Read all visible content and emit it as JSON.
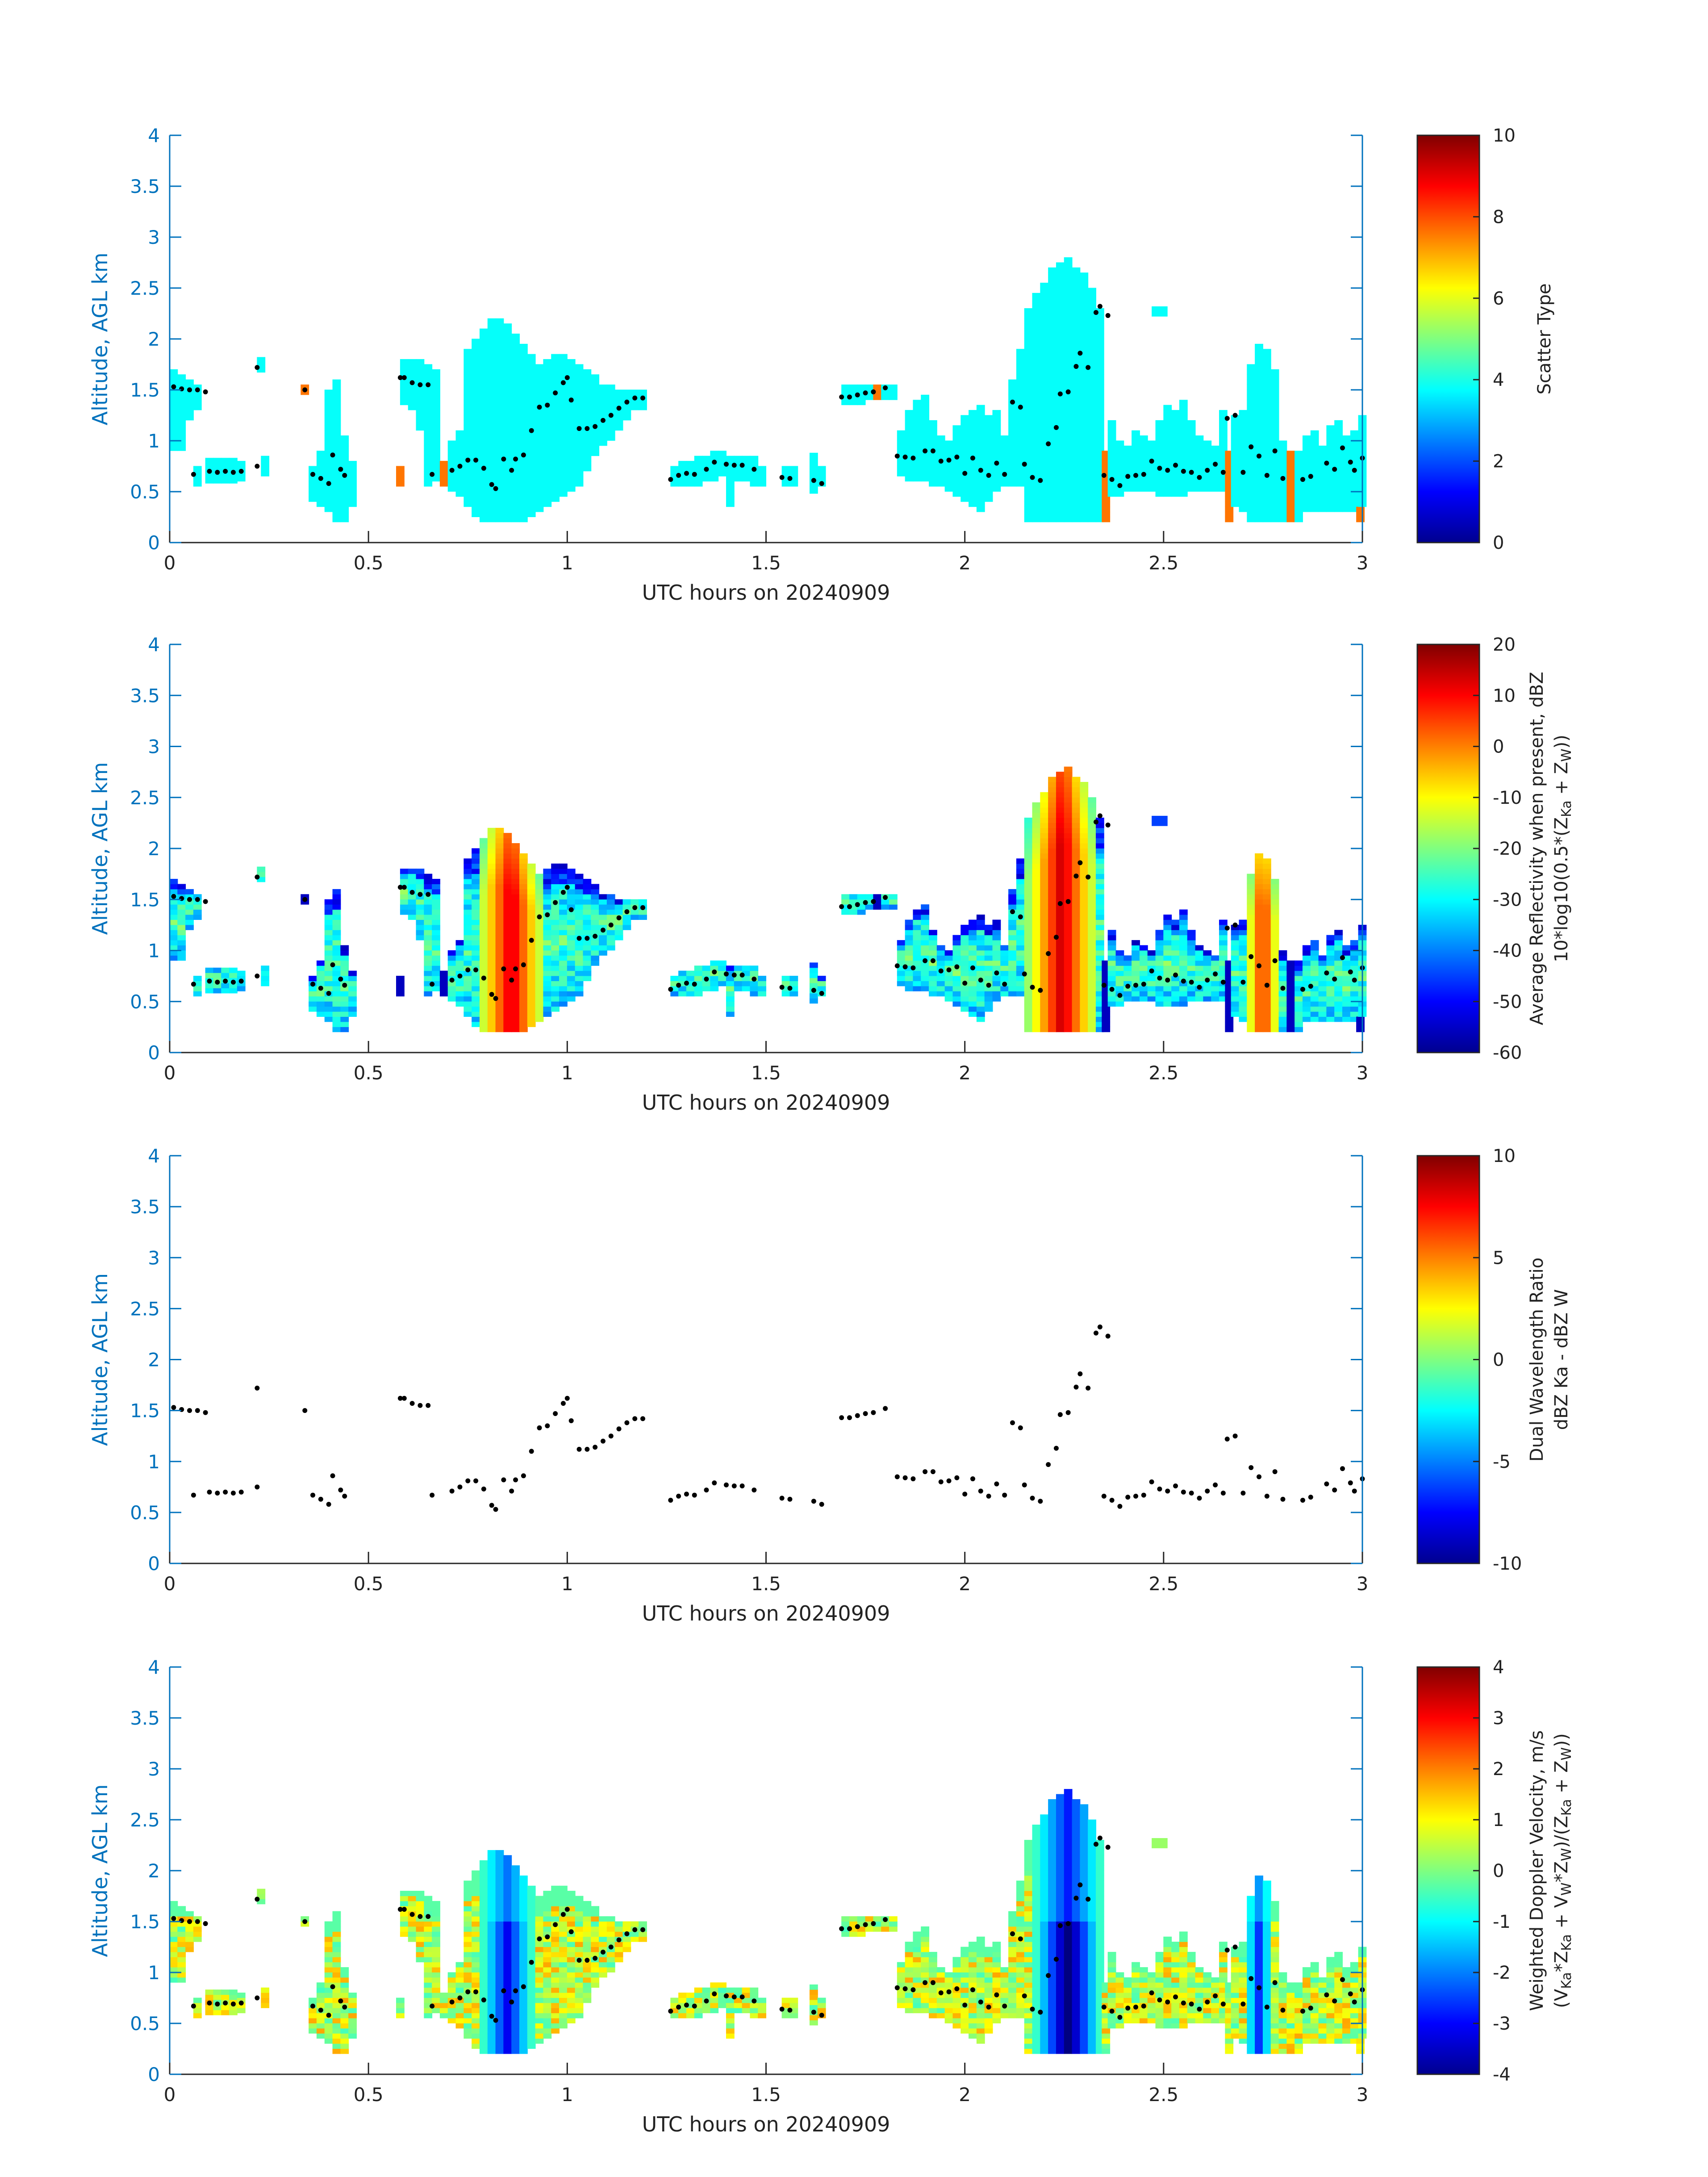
{
  "chart_data": [
    {
      "type": "heatmap",
      "xlabel": "UTC hours on 20240909",
      "ylabel": "Altitude, AGL km",
      "xlim": [
        0,
        3
      ],
      "ylim": [
        0,
        4
      ],
      "xticks": [
        0,
        0.5,
        1,
        1.5,
        2,
        2.5,
        3
      ],
      "xtick_labels": [
        "0",
        "0.5",
        "1",
        "1.5",
        "2",
        "2.5",
        "3"
      ],
      "yticks": [
        0,
        0.5,
        1,
        1.5,
        2,
        2.5,
        3,
        3.5,
        4
      ],
      "ytick_labels": [
        "0",
        "0.5",
        "1",
        "1.5",
        "2",
        "2.5",
        "3",
        "3.5",
        "4"
      ],
      "colorbar": {
        "label_lines": [
          "Scatter Type"
        ],
        "range": [
          0,
          10
        ],
        "ticks": [
          0,
          2,
          4,
          6,
          8,
          10
        ],
        "tick_labels": [
          "0",
          "2",
          "4",
          "6",
          "8",
          "10"
        ],
        "colormap": "jet"
      },
      "field": "scatter",
      "dominant_value": 3.8,
      "secondary_value": 7.6
    },
    {
      "type": "heatmap",
      "xlabel": "UTC hours on 20240909",
      "ylabel": "Altitude, AGL km",
      "xlim": [
        0,
        3
      ],
      "ylim": [
        0,
        4
      ],
      "xticks": [
        0,
        0.5,
        1,
        1.5,
        2,
        2.5,
        3
      ],
      "xtick_labels": [
        "0",
        "0.5",
        "1",
        "1.5",
        "2",
        "2.5",
        "3"
      ],
      "yticks": [
        0,
        0.5,
        1,
        1.5,
        2,
        2.5,
        3,
        3.5,
        4
      ],
      "ytick_labels": [
        "0",
        "0.5",
        "1",
        "1.5",
        "2",
        "2.5",
        "3",
        "3.5",
        "4"
      ],
      "colorbar": {
        "label_lines": [
          "Average Reflectivity when present, dBZ",
          "10*log10(0.5*(Z",
          "Ka",
          " + Z",
          "W",
          "))"
        ],
        "range": [
          -60,
          20
        ],
        "ticks": [
          -60,
          -50,
          -40,
          -30,
          -20,
          -10,
          0,
          10,
          20
        ],
        "tick_labels": [
          "-60",
          "-50",
          "-40",
          "-30",
          "-20",
          "-10",
          "0",
          "10",
          "20"
        ],
        "colormap": "jet"
      },
      "field": "reflectivity",
      "convective_cores": [
        {
          "x_range": [
            0.77,
            0.93
          ],
          "peak_dBZ": 14
        },
        {
          "x_range": [
            2.15,
            2.32
          ],
          "peak_dBZ": 15
        },
        {
          "x_range": [
            2.7,
            2.78
          ],
          "peak_dBZ": 8
        }
      ]
    },
    {
      "type": "heatmap",
      "xlabel": "UTC hours on 20240909",
      "ylabel": "Altitude, AGL km",
      "xlim": [
        0,
        3
      ],
      "ylim": [
        0,
        4
      ],
      "xticks": [
        0,
        0.5,
        1,
        1.5,
        2,
        2.5,
        3
      ],
      "xtick_labels": [
        "0",
        "0.5",
        "1",
        "1.5",
        "2",
        "2.5",
        "3"
      ],
      "yticks": [
        0,
        0.5,
        1,
        1.5,
        2,
        2.5,
        3,
        3.5,
        4
      ],
      "ytick_labels": [
        "0",
        "0.5",
        "1",
        "1.5",
        "2",
        "2.5",
        "3",
        "3.5",
        "4"
      ],
      "colorbar": {
        "label_lines": [
          "Dual Wavelength Ratio",
          "dBZ Ka - dBZ W"
        ],
        "range": [
          -10,
          10
        ],
        "ticks": [
          -10,
          -5,
          0,
          5,
          10
        ],
        "tick_labels": [
          "-10",
          "-5",
          "0",
          "5",
          "10"
        ],
        "colormap": "jet"
      },
      "field": "none"
    },
    {
      "type": "heatmap",
      "xlabel": "UTC hours on 20240909",
      "ylabel": "Altitude, AGL km",
      "xlim": [
        0,
        3
      ],
      "ylim": [
        0,
        4
      ],
      "xticks": [
        0,
        0.5,
        1,
        1.5,
        2,
        2.5,
        3
      ],
      "xtick_labels": [
        "0",
        "0.5",
        "1",
        "1.5",
        "2",
        "2.5",
        "3"
      ],
      "yticks": [
        0,
        0.5,
        1,
        1.5,
        2,
        2.5,
        3,
        3.5,
        4
      ],
      "ytick_labels": [
        "0",
        "0.5",
        "1",
        "1.5",
        "2",
        "2.5",
        "3",
        "3.5",
        "4"
      ],
      "colorbar": {
        "label_lines": [
          "Weighted Doppler Velocity, m/s",
          "(V",
          "Ka",
          "*Z",
          "Ka",
          " + V",
          "W",
          "*Z",
          "W",
          ")/(Z",
          "Ka",
          " + Z",
          "W",
          "))"
        ],
        "range": [
          -4,
          4
        ],
        "ticks": [
          -4,
          -3,
          -2,
          -1,
          0,
          1,
          2,
          3,
          4
        ],
        "tick_labels": [
          "-4",
          "-3",
          "-2",
          "-1",
          "0",
          "1",
          "2",
          "3",
          "4"
        ],
        "colormap": "jet"
      },
      "field": "velocity",
      "updraft_cores": [
        {
          "x_range": [
            0.78,
            0.9
          ],
          "min_ms": -2.5
        },
        {
          "x_range": [
            2.17,
            2.33
          ],
          "min_ms": -3.7
        },
        {
          "x_range": [
            2.7,
            2.76
          ],
          "min_ms": -2.0
        }
      ]
    }
  ],
  "cloud_base_points": [
    [
      0.01,
      1.53
    ],
    [
      0.03,
      1.51
    ],
    [
      0.05,
      1.5
    ],
    [
      0.07,
      1.5
    ],
    [
      0.09,
      1.48
    ],
    [
      0.06,
      0.67
    ],
    [
      0.1,
      0.7
    ],
    [
      0.12,
      0.69
    ],
    [
      0.14,
      0.7
    ],
    [
      0.16,
      0.69
    ],
    [
      0.18,
      0.7
    ],
    [
      0.22,
      1.72
    ],
    [
      0.22,
      0.75
    ],
    [
      0.34,
      1.5
    ],
    [
      0.36,
      0.67
    ],
    [
      0.38,
      0.63
    ],
    [
      0.4,
      0.58
    ],
    [
      0.41,
      0.86
    ],
    [
      0.43,
      0.72
    ],
    [
      0.44,
      0.66
    ],
    [
      0.58,
      1.62
    ],
    [
      0.59,
      1.62
    ],
    [
      0.61,
      1.57
    ],
    [
      0.63,
      1.55
    ],
    [
      0.65,
      1.55
    ],
    [
      0.66,
      0.67
    ],
    [
      0.71,
      0.71
    ],
    [
      0.73,
      0.75
    ],
    [
      0.75,
      0.81
    ],
    [
      0.77,
      0.81
    ],
    [
      0.79,
      0.73
    ],
    [
      0.81,
      0.57
    ],
    [
      0.82,
      0.53
    ],
    [
      0.84,
      0.82
    ],
    [
      0.86,
      0.71
    ],
    [
      0.87,
      0.82
    ],
    [
      0.89,
      0.86
    ],
    [
      0.91,
      1.1
    ],
    [
      0.93,
      1.33
    ],
    [
      0.95,
      1.35
    ],
    [
      0.97,
      1.47
    ],
    [
      0.99,
      1.57
    ],
    [
      1.0,
      1.62
    ],
    [
      1.01,
      1.4
    ],
    [
      1.03,
      1.12
    ],
    [
      1.05,
      1.12
    ],
    [
      1.07,
      1.14
    ],
    [
      1.09,
      1.2
    ],
    [
      1.11,
      1.25
    ],
    [
      1.13,
      1.32
    ],
    [
      1.15,
      1.38
    ],
    [
      1.17,
      1.42
    ],
    [
      1.19,
      1.42
    ],
    [
      1.26,
      0.62
    ],
    [
      1.28,
      0.66
    ],
    [
      1.3,
      0.68
    ],
    [
      1.32,
      0.67
    ],
    [
      1.35,
      0.72
    ],
    [
      1.37,
      0.79
    ],
    [
      1.4,
      0.77
    ],
    [
      1.42,
      0.76
    ],
    [
      1.44,
      0.76
    ],
    [
      1.47,
      0.72
    ],
    [
      1.54,
      0.64
    ],
    [
      1.56,
      0.63
    ],
    [
      1.62,
      0.61
    ],
    [
      1.64,
      0.58
    ],
    [
      1.69,
      1.43
    ],
    [
      1.71,
      1.43
    ],
    [
      1.73,
      1.45
    ],
    [
      1.75,
      1.47
    ],
    [
      1.77,
      1.48
    ],
    [
      1.8,
      1.52
    ],
    [
      1.83,
      0.85
    ],
    [
      1.85,
      0.84
    ],
    [
      1.87,
      0.83
    ],
    [
      1.9,
      0.9
    ],
    [
      1.92,
      0.9
    ],
    [
      1.94,
      0.8
    ],
    [
      1.96,
      0.81
    ],
    [
      1.98,
      0.84
    ],
    [
      2.0,
      0.68
    ],
    [
      2.02,
      0.83
    ],
    [
      2.04,
      0.71
    ],
    [
      2.06,
      0.66
    ],
    [
      2.08,
      0.78
    ],
    [
      2.1,
      0.67
    ],
    [
      2.12,
      1.38
    ],
    [
      2.14,
      1.33
    ],
    [
      2.15,
      0.77
    ],
    [
      2.17,
      0.64
    ],
    [
      2.19,
      0.61
    ],
    [
      2.21,
      0.97
    ],
    [
      2.23,
      1.13
    ],
    [
      2.24,
      1.46
    ],
    [
      2.26,
      1.48
    ],
    [
      2.28,
      1.73
    ],
    [
      2.29,
      1.86
    ],
    [
      2.31,
      1.72
    ],
    [
      2.33,
      2.26
    ],
    [
      2.34,
      2.32
    ],
    [
      2.36,
      2.23
    ],
    [
      2.35,
      0.66
    ],
    [
      2.37,
      0.62
    ],
    [
      2.39,
      0.56
    ],
    [
      2.41,
      0.65
    ],
    [
      2.43,
      0.66
    ],
    [
      2.45,
      0.67
    ],
    [
      2.47,
      0.8
    ],
    [
      2.49,
      0.73
    ],
    [
      2.51,
      0.71
    ],
    [
      2.53,
      0.76
    ],
    [
      2.55,
      0.7
    ],
    [
      2.57,
      0.69
    ],
    [
      2.59,
      0.64
    ],
    [
      2.61,
      0.71
    ],
    [
      2.63,
      0.77
    ],
    [
      2.65,
      0.69
    ],
    [
      2.66,
      1.22
    ],
    [
      2.68,
      1.25
    ],
    [
      2.7,
      0.69
    ],
    [
      2.72,
      0.94
    ],
    [
      2.74,
      0.85
    ],
    [
      2.76,
      0.66
    ],
    [
      2.78,
      0.9
    ],
    [
      2.8,
      0.63
    ],
    [
      2.85,
      0.62
    ],
    [
      2.87,
      0.65
    ],
    [
      2.91,
      0.78
    ],
    [
      2.93,
      0.72
    ],
    [
      2.95,
      0.93
    ],
    [
      2.97,
      0.79
    ],
    [
      2.98,
      0.71
    ],
    [
      3.0,
      0.83
    ]
  ],
  "echo_columns": [
    [
      0.0,
      0.9,
      1.7,
      "s"
    ],
    [
      0.02,
      0.9,
      1.65,
      "s"
    ],
    [
      0.04,
      1.2,
      1.6,
      "s"
    ],
    [
      0.06,
      0.55,
      0.75,
      "s"
    ],
    [
      0.06,
      1.3,
      1.55,
      "s"
    ],
    [
      0.09,
      0.58,
      0.82,
      "s"
    ],
    [
      0.11,
      0.58,
      0.82,
      "s"
    ],
    [
      0.13,
      0.58,
      0.82,
      "s"
    ],
    [
      0.15,
      0.58,
      0.82,
      "s"
    ],
    [
      0.17,
      0.6,
      0.8,
      "s"
    ],
    [
      0.22,
      1.67,
      1.8,
      "s"
    ],
    [
      0.23,
      0.65,
      0.85,
      "s"
    ],
    [
      0.33,
      1.45,
      1.55,
      "o"
    ],
    [
      0.35,
      0.4,
      0.75,
      "s"
    ],
    [
      0.37,
      0.35,
      0.9,
      "s"
    ],
    [
      0.39,
      0.3,
      1.5,
      "s"
    ],
    [
      0.41,
      0.2,
      1.6,
      "s"
    ],
    [
      0.43,
      0.2,
      1.05,
      "s"
    ],
    [
      0.45,
      0.35,
      0.8,
      "s"
    ],
    [
      0.57,
      0.55,
      0.72,
      "o"
    ],
    [
      0.58,
      1.35,
      1.8,
      "s"
    ],
    [
      0.6,
      1.3,
      1.8,
      "s"
    ],
    [
      0.62,
      1.1,
      1.8,
      "s"
    ],
    [
      0.64,
      0.55,
      1.75,
      "s"
    ],
    [
      0.66,
      0.6,
      1.7,
      "s"
    ],
    [
      0.68,
      0.55,
      0.8,
      "o"
    ],
    [
      0.7,
      0.5,
      1.0,
      "s"
    ],
    [
      0.72,
      0.45,
      1.1,
      "s"
    ],
    [
      0.74,
      0.35,
      1.9,
      "s"
    ],
    [
      0.76,
      0.25,
      2.0,
      "s"
    ],
    [
      0.78,
      0.2,
      2.1,
      "s"
    ],
    [
      0.8,
      0.2,
      2.2,
      "s"
    ],
    [
      0.82,
      0.2,
      2.2,
      "s"
    ],
    [
      0.84,
      0.2,
      2.15,
      "s"
    ],
    [
      0.86,
      0.2,
      2.05,
      "s"
    ],
    [
      0.88,
      0.2,
      1.95,
      "s"
    ],
    [
      0.9,
      0.25,
      1.85,
      "s"
    ],
    [
      0.92,
      0.3,
      1.75,
      "s"
    ],
    [
      0.94,
      0.35,
      1.8,
      "s"
    ],
    [
      0.96,
      0.4,
      1.85,
      "s"
    ],
    [
      0.98,
      0.45,
      1.85,
      "s"
    ],
    [
      1.0,
      0.5,
      1.8,
      "s"
    ],
    [
      1.02,
      0.55,
      1.75,
      "s"
    ],
    [
      1.04,
      0.7,
      1.7,
      "s"
    ],
    [
      1.06,
      0.85,
      1.65,
      "s"
    ],
    [
      1.08,
      0.95,
      1.55,
      "s"
    ],
    [
      1.1,
      1.0,
      1.55,
      "s"
    ],
    [
      1.12,
      1.1,
      1.5,
      "s"
    ],
    [
      1.14,
      1.2,
      1.5,
      "s"
    ],
    [
      1.16,
      1.3,
      1.5,
      "s"
    ],
    [
      1.18,
      1.3,
      1.48,
      "s"
    ],
    [
      1.26,
      0.55,
      0.75,
      "s"
    ],
    [
      1.28,
      0.55,
      0.8,
      "s"
    ],
    [
      1.3,
      0.55,
      0.8,
      "s"
    ],
    [
      1.32,
      0.55,
      0.85,
      "s"
    ],
    [
      1.34,
      0.6,
      0.85,
      "s"
    ],
    [
      1.36,
      0.6,
      0.9,
      "s"
    ],
    [
      1.38,
      0.65,
      0.9,
      "s"
    ],
    [
      1.4,
      0.35,
      0.85,
      "s"
    ],
    [
      1.42,
      0.6,
      0.85,
      "s"
    ],
    [
      1.44,
      0.6,
      0.85,
      "s"
    ],
    [
      1.46,
      0.55,
      0.85,
      "s"
    ],
    [
      1.48,
      0.55,
      0.75,
      "s"
    ],
    [
      1.54,
      0.55,
      0.75,
      "s"
    ],
    [
      1.56,
      0.55,
      0.75,
      "s"
    ],
    [
      1.61,
      0.48,
      0.88,
      "s"
    ],
    [
      1.63,
      0.55,
      0.72,
      "s"
    ],
    [
      1.69,
      1.35,
      1.55,
      "s"
    ],
    [
      1.71,
      1.35,
      1.55,
      "s"
    ],
    [
      1.73,
      1.35,
      1.55,
      "s"
    ],
    [
      1.75,
      1.4,
      1.55,
      "s"
    ],
    [
      1.77,
      1.4,
      1.55,
      "o"
    ],
    [
      1.79,
      1.4,
      1.55,
      "s"
    ],
    [
      1.81,
      1.4,
      1.55,
      "s"
    ],
    [
      1.83,
      0.65,
      1.1,
      "s"
    ],
    [
      1.85,
      0.6,
      1.3,
      "s"
    ],
    [
      1.87,
      0.6,
      1.4,
      "s"
    ],
    [
      1.89,
      0.6,
      1.45,
      "s"
    ],
    [
      1.91,
      0.55,
      1.2,
      "s"
    ],
    [
      1.93,
      0.55,
      1.05,
      "s"
    ],
    [
      1.95,
      0.5,
      1.0,
      "s"
    ],
    [
      1.97,
      0.45,
      1.15,
      "s"
    ],
    [
      1.99,
      0.4,
      1.25,
      "s"
    ],
    [
      2.01,
      0.35,
      1.3,
      "s"
    ],
    [
      2.03,
      0.3,
      1.35,
      "s"
    ],
    [
      2.05,
      0.4,
      1.25,
      "s"
    ],
    [
      2.07,
      0.5,
      1.3,
      "s"
    ],
    [
      2.09,
      0.55,
      1.05,
      "s"
    ],
    [
      2.11,
      0.55,
      1.6,
      "s"
    ],
    [
      2.13,
      0.55,
      1.9,
      "s"
    ],
    [
      2.15,
      0.2,
      2.3,
      "s"
    ],
    [
      2.17,
      0.2,
      2.45,
      "s"
    ],
    [
      2.19,
      0.2,
      2.55,
      "s"
    ],
    [
      2.21,
      0.2,
      2.7,
      "s"
    ],
    [
      2.23,
      0.2,
      2.75,
      "s"
    ],
    [
      2.25,
      0.2,
      2.8,
      "s"
    ],
    [
      2.27,
      0.2,
      2.7,
      "s"
    ],
    [
      2.29,
      0.2,
      2.65,
      "s"
    ],
    [
      2.31,
      0.2,
      2.5,
      "s"
    ],
    [
      2.33,
      0.2,
      2.3,
      "s"
    ],
    [
      2.345,
      0.2,
      0.9,
      "o"
    ],
    [
      2.36,
      0.45,
      1.2,
      "s"
    ],
    [
      2.38,
      0.45,
      1.0,
      "s"
    ],
    [
      2.4,
      0.5,
      0.95,
      "s"
    ],
    [
      2.42,
      0.5,
      1.1,
      "s"
    ],
    [
      2.44,
      0.5,
      1.05,
      "s"
    ],
    [
      2.46,
      0.5,
      1.0,
      "s"
    ],
    [
      2.48,
      0.45,
      1.2,
      "s"
    ],
    [
      2.5,
      0.45,
      1.35,
      "s"
    ],
    [
      2.52,
      0.45,
      1.3,
      "s"
    ],
    [
      2.54,
      0.45,
      1.4,
      "s"
    ],
    [
      2.56,
      0.5,
      1.2,
      "s"
    ],
    [
      2.58,
      0.5,
      1.05,
      "s"
    ],
    [
      2.6,
      0.5,
      1.0,
      "s"
    ],
    [
      2.62,
      0.5,
      0.95,
      "s"
    ],
    [
      2.64,
      0.5,
      1.3,
      "s"
    ],
    [
      2.655,
      0.2,
      0.9,
      "o"
    ],
    [
      2.67,
      0.35,
      1.25,
      "s"
    ],
    [
      2.69,
      0.3,
      1.3,
      "s"
    ],
    [
      2.71,
      0.2,
      1.75,
      "s"
    ],
    [
      2.73,
      0.2,
      1.95,
      "s"
    ],
    [
      2.75,
      0.2,
      1.9,
      "s"
    ],
    [
      2.77,
      0.2,
      1.7,
      "s"
    ],
    [
      2.79,
      0.2,
      1.0,
      "s"
    ],
    [
      2.81,
      0.2,
      0.9,
      "o"
    ],
    [
      2.83,
      0.2,
      0.9,
      "s"
    ],
    [
      2.85,
      0.3,
      1.05,
      "s"
    ],
    [
      2.87,
      0.3,
      1.1,
      "s"
    ],
    [
      2.89,
      0.3,
      0.95,
      "s"
    ],
    [
      2.91,
      0.3,
      1.15,
      "s"
    ],
    [
      2.93,
      0.3,
      1.2,
      "s"
    ],
    [
      2.95,
      0.3,
      1.05,
      "s"
    ],
    [
      2.97,
      0.3,
      1.1,
      "s"
    ],
    [
      2.985,
      0.2,
      0.35,
      "o"
    ],
    [
      2.99,
      0.35,
      1.25,
      "s"
    ]
  ],
  "extra_blocks": [
    [
      2.47,
      2.51,
      2.22,
      2.32
    ]
  ]
}
